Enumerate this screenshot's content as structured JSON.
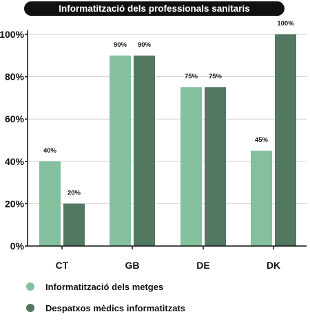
{
  "chart_data": {
    "type": "bar",
    "title": "Informatització dels professionals sanitaris",
    "categories": [
      "CT",
      "GB",
      "DE",
      "DK"
    ],
    "series": [
      {
        "name": "Informatització dels metges",
        "values": [
          40,
          90,
          75,
          45
        ],
        "labels": [
          "40%",
          "90%",
          "75%",
          "45%"
        ],
        "color": "#84c09d"
      },
      {
        "name": "Despatxos mèdics informatitzats",
        "values": [
          20,
          90,
          75,
          100
        ],
        "labels": [
          "20%",
          "90%",
          "75%",
          "100%"
        ],
        "color": "#527862"
      }
    ],
    "yticks": [
      "0%",
      "20%",
      "40%",
      "60%",
      "80%",
      "100%"
    ],
    "ylim": [
      0,
      100
    ],
    "grid": true,
    "legend_position": "bottom-left"
  }
}
